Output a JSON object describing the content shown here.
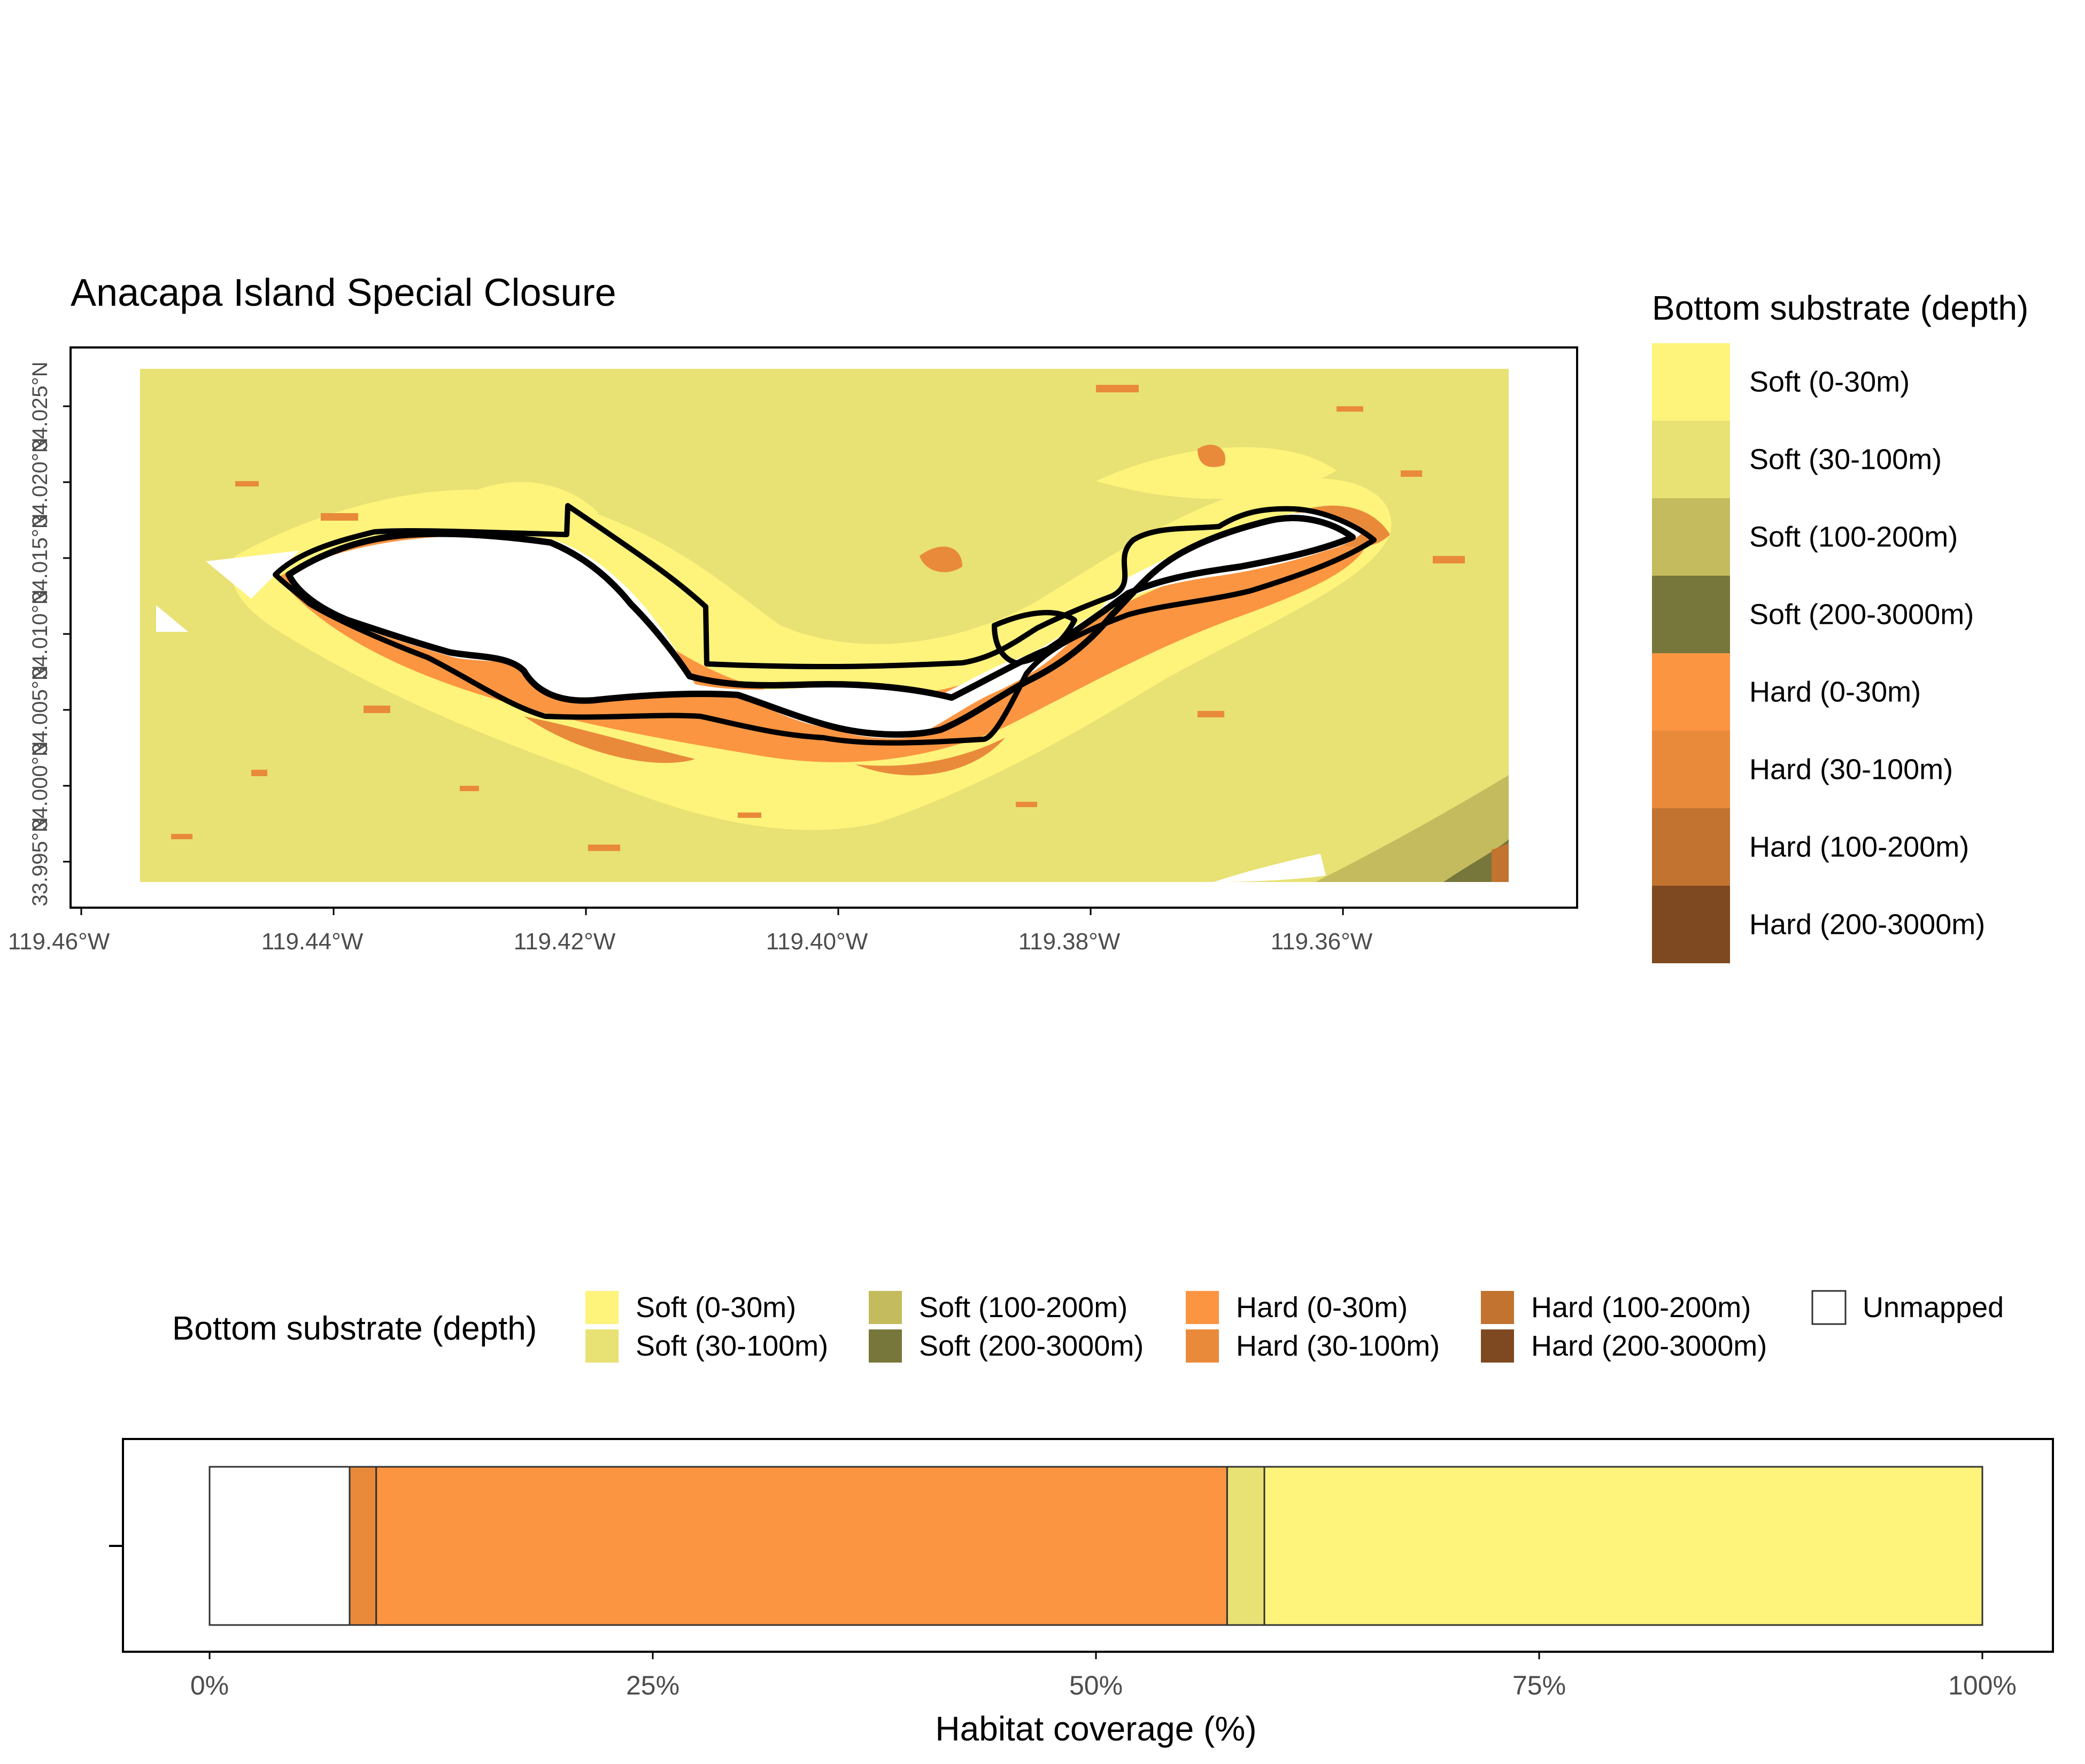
{
  "map": {
    "title": "Anacapa Island Special Closure",
    "x_tick_labels": [
      "119.46°W",
      "119.44°W",
      "119.42°W",
      "119.40°W",
      "119.38°W",
      "119.36°W"
    ],
    "y_tick_labels": [
      "33.995°N",
      "34.000°N",
      "34.005°N",
      "34.010°N",
      "34.015°N",
      "34.020°N",
      "34.025°N"
    ],
    "extent": {
      "lon_min": -119.455,
      "lon_max": -119.346,
      "lat_min": 33.996,
      "lat_max": 34.026
    }
  },
  "side_legend": {
    "title": "Bottom substrate (depth)",
    "items": [
      {
        "label": "Soft (0-30m)",
        "color": "#FEF37B"
      },
      {
        "label": "Soft (30-100m)",
        "color": "#E8E174"
      },
      {
        "label": "Soft (100-200m)",
        "color": "#C3BB5E"
      },
      {
        "label": "Soft (200-3000m)",
        "color": "#77773B"
      },
      {
        "label": "Hard (0-30m)",
        "color": "#FB9542"
      },
      {
        "label": "Hard (30-100m)",
        "color": "#E98A3B"
      },
      {
        "label": "Hard (100-200m)",
        "color": "#C27330"
      },
      {
        "label": "Hard (200-3000m)",
        "color": "#7E4920"
      }
    ]
  },
  "bar_legend": {
    "title": "Bottom substrate (depth)",
    "items": [
      {
        "label": "Soft (0-30m)",
        "color": "#FEF37B"
      },
      {
        "label": "Soft (30-100m)",
        "color": "#E8E174"
      },
      {
        "label": "Soft (100-200m)",
        "color": "#C3BB5E"
      },
      {
        "label": "Soft (200-3000m)",
        "color": "#77773B"
      },
      {
        "label": "Hard (0-30m)",
        "color": "#FB9542"
      },
      {
        "label": "Hard (30-100m)",
        "color": "#E98A3B"
      },
      {
        "label": "Hard (100-200m)",
        "color": "#C27330"
      },
      {
        "label": "Hard (200-3000m)",
        "color": "#7E4920"
      },
      {
        "label": "Unmapped",
        "color": "#FFFFFF"
      }
    ]
  },
  "chart_data": {
    "type": "bar",
    "orientation": "horizontal",
    "stacked": true,
    "xlabel": "Habitat coverage (%)",
    "ylabel": "",
    "xlim": [
      0,
      100
    ],
    "x_tick_labels": [
      "0%",
      "25%",
      "50%",
      "75%",
      "100%"
    ],
    "x_ticks": [
      0,
      25,
      50,
      75,
      100
    ],
    "segments": [
      {
        "name": "Unmapped",
        "value": 7.9,
        "color": "#FFFFFF"
      },
      {
        "name": "Hard (30-100m)",
        "value": 1.5,
        "color": "#E98A3B"
      },
      {
        "name": "Hard (0-30m)",
        "value": 48.0,
        "color": "#FB9542"
      },
      {
        "name": "Soft (30-100m)",
        "value": 2.1,
        "color": "#E8E174"
      },
      {
        "name": "Soft (0-30m)",
        "value": 40.5,
        "color": "#FEF37B"
      }
    ]
  }
}
